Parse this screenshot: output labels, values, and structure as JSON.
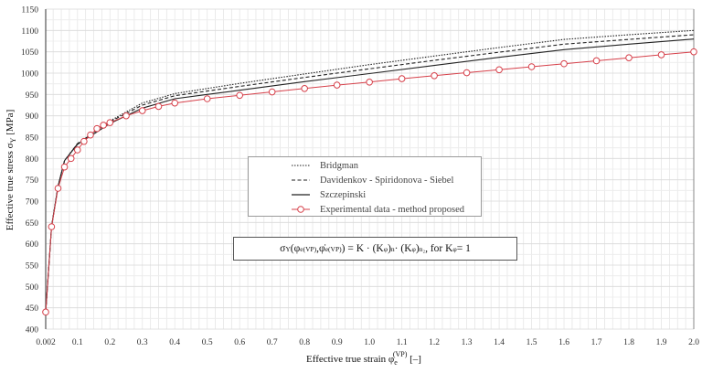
{
  "chart_data": {
    "type": "line",
    "title": "",
    "xlabel": "Effective true strain φe(VP) [–]",
    "ylabel": "Effective true stress σY [MPa]",
    "xlim": [
      0.002,
      2.0
    ],
    "ylim": [
      400,
      1150
    ],
    "grid": true,
    "x_ticks": [
      "0.002",
      "0.1",
      "0.2",
      "0.3",
      "0.4",
      "0.5",
      "0.6",
      "0.7",
      "0.8",
      "0.9",
      "1.0",
      "1.1",
      "1.2",
      "1.3",
      "1.4",
      "1.5",
      "1.6",
      "1.7",
      "1.8",
      "1.9",
      "2.0"
    ],
    "y_ticks": [
      400,
      450,
      500,
      550,
      600,
      650,
      700,
      750,
      800,
      850,
      900,
      950,
      1000,
      1050,
      1100,
      1150
    ],
    "legend_position": "center",
    "series": [
      {
        "name": "Bridgman",
        "style": "dotted",
        "color": "#222222",
        "x": [
          0.002,
          0.02,
          0.04,
          0.06,
          0.1,
          0.15,
          0.2,
          0.3,
          0.4,
          0.5,
          0.6,
          0.8,
          1.0,
          1.2,
          1.4,
          1.6,
          1.8,
          2.0
        ],
        "y": [
          440,
          640,
          735,
          795,
          835,
          860,
          888,
          930,
          952,
          964,
          976,
          998,
          1020,
          1040,
          1060,
          1079,
          1090,
          1100
        ]
      },
      {
        "name": "Davidenkov - Spiridonova - Siebel",
        "style": "dashed",
        "color": "#222222",
        "x": [
          0.002,
          0.02,
          0.04,
          0.06,
          0.1,
          0.15,
          0.2,
          0.3,
          0.4,
          0.5,
          0.6,
          0.8,
          1.0,
          1.2,
          1.4,
          1.6,
          1.8,
          2.0
        ],
        "y": [
          440,
          640,
          735,
          795,
          835,
          860,
          886,
          925,
          947,
          958,
          969,
          990,
          1010,
          1030,
          1049,
          1068,
          1079,
          1090
        ]
      },
      {
        "name": "Szczepinski",
        "style": "solid",
        "color": "#222222",
        "x": [
          0.002,
          0.02,
          0.04,
          0.06,
          0.1,
          0.15,
          0.2,
          0.3,
          0.4,
          0.5,
          0.6,
          0.8,
          1.0,
          1.2,
          1.4,
          1.6,
          1.8,
          2.0
        ],
        "y": [
          440,
          640,
          735,
          795,
          833,
          857,
          882,
          918,
          940,
          950,
          960,
          980,
          999,
          1018,
          1037,
          1055,
          1068,
          1080
        ]
      },
      {
        "name": "Experimental data - method proposed",
        "style": "line+open-circle",
        "color": "#d6404a",
        "x": [
          0.002,
          0.02,
          0.04,
          0.06,
          0.08,
          0.1,
          0.12,
          0.14,
          0.16,
          0.18,
          0.2,
          0.25,
          0.3,
          0.35,
          0.4,
          0.5,
          0.6,
          0.7,
          0.8,
          0.9,
          1.0,
          1.1,
          1.2,
          1.3,
          1.4,
          1.5,
          1.6,
          1.7,
          1.8,
          1.9,
          2.0
        ],
        "y": [
          440,
          640,
          730,
          780,
          800,
          820,
          840,
          855,
          870,
          878,
          884,
          900,
          912,
          922,
          930,
          940,
          948,
          956,
          964,
          972,
          979,
          987,
          994,
          1001,
          1008,
          1015,
          1022,
          1029,
          1036,
          1043,
          1050
        ]
      }
    ]
  },
  "axes": {
    "y_title_main": "Effective true stress  σ",
    "y_title_sub": "Y",
    "y_title_unit": "  [MPa]",
    "x_title_main": "Effective true strain φ",
    "x_title_sub": "e",
    "x_title_sup": "(VP)",
    "x_title_unit": " [–]"
  },
  "legend": {
    "items": [
      {
        "label": "Bridgman"
      },
      {
        "label": "Davidenkov - Spiridonova - Siebel"
      },
      {
        "label": "Szczepinski"
      },
      {
        "label": "Experimental data - method proposed"
      }
    ]
  },
  "equation": {
    "sigma": "σ",
    "sigma_sub": "Y",
    "open": " (",
    "phi": "φ",
    "phi_sub": "e",
    "phi_sup": "(VP)",
    "comma": ", ",
    "phidot": "φ̇",
    "phidot_sub": "e",
    "phidot_sup": "(VP)",
    "close": ") = K · (K",
    "kphi_sub1": "φ",
    "pow_n": ")",
    "n_sup": "n",
    "mid": " · (K",
    "kphi_sub2": "φ",
    "pow_n2": ")",
    "n2_sup": "n₂",
    "tail": ", for K",
    "kphi_sub3": "φ",
    "end": " = 1"
  },
  "colors": {
    "experimental": "#d6404a",
    "model_lines": "#222222",
    "grid": "#dedede",
    "axis": "#555555"
  }
}
